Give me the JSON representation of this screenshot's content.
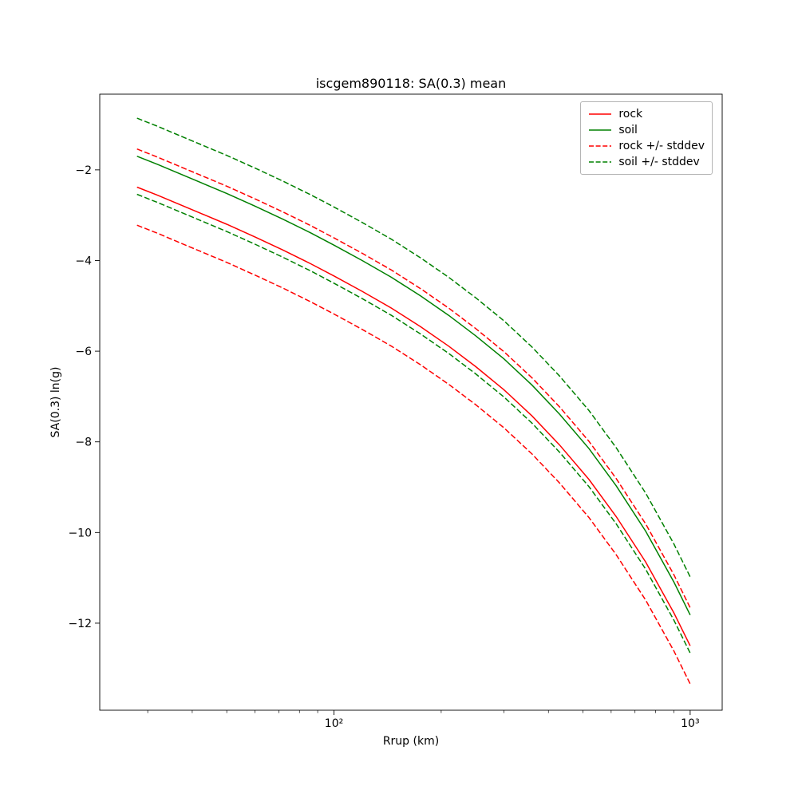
{
  "title": "iscgem890118: SA(0.3) mean",
  "axes": {
    "xlabel": "Rrup (km)",
    "ylabel": "SA(0.3) ln(g)",
    "x_scale": "log",
    "x_range": [
      22,
      1230
    ],
    "y_range": [
      -13.92,
      -0.33
    ],
    "x_ticks": [
      {
        "value": 100,
        "label": "10²"
      },
      {
        "value": 1000,
        "label": "10³"
      }
    ],
    "y_ticks": [
      {
        "value": -2,
        "label": "−2"
      },
      {
        "value": -4,
        "label": "−4"
      },
      {
        "value": -6,
        "label": "−6"
      },
      {
        "value": -8,
        "label": "−8"
      },
      {
        "value": -10,
        "label": "−10"
      },
      {
        "value": -12,
        "label": "−12"
      }
    ]
  },
  "legend": {
    "position": "upper right",
    "items": [
      {
        "label": "rock",
        "color": "#ff0000",
        "style": "solid"
      },
      {
        "label": "soil",
        "color": "#008000",
        "style": "solid"
      },
      {
        "label": "rock +/- stddev",
        "color": "#ff0000",
        "style": "dashed"
      },
      {
        "label": "soil +/- stddev",
        "color": "#008000",
        "style": "dashed"
      }
    ]
  },
  "chart_data": {
    "type": "line",
    "title": "iscgem890118: SA(0.3) mean",
    "xlabel": "Rrup (km)",
    "ylabel": "SA(0.3) ln(g)",
    "x_scale": "log",
    "grid": false,
    "legend_position": "upper right",
    "x": [
      28,
      32,
      36,
      42,
      50,
      60,
      72,
      86,
      100,
      120,
      145,
      175,
      210,
      250,
      300,
      360,
      430,
      520,
      620,
      750,
      900,
      1000
    ],
    "series": [
      {
        "name": "rock",
        "color": "#ff0000",
        "style": "solid",
        "values": [
          -2.38,
          -2.56,
          -2.73,
          -2.95,
          -3.2,
          -3.48,
          -3.77,
          -4.07,
          -4.34,
          -4.68,
          -5.05,
          -5.46,
          -5.89,
          -6.34,
          -6.85,
          -7.43,
          -8.07,
          -8.83,
          -9.65,
          -10.65,
          -11.77,
          -12.5
        ]
      },
      {
        "name": "soil",
        "color": "#008000",
        "style": "solid",
        "values": [
          -1.7,
          -1.88,
          -2.05,
          -2.27,
          -2.52,
          -2.8,
          -3.09,
          -3.39,
          -3.66,
          -4.0,
          -4.37,
          -4.78,
          -5.21,
          -5.66,
          -6.17,
          -6.75,
          -7.39,
          -8.15,
          -8.97,
          -9.97,
          -11.09,
          -11.82
        ]
      },
      {
        "name": "rock + stddev",
        "color": "#ff0000",
        "style": "dashed",
        "values": [
          -1.54,
          -1.72,
          -1.89,
          -2.11,
          -2.36,
          -2.64,
          -2.93,
          -3.23,
          -3.5,
          -3.84,
          -4.21,
          -4.62,
          -5.05,
          -5.5,
          -6.01,
          -6.59,
          -7.23,
          -7.99,
          -8.81,
          -9.81,
          -10.93,
          -11.66
        ]
      },
      {
        "name": "rock - stddev",
        "color": "#ff0000",
        "style": "dashed",
        "values": [
          -3.22,
          -3.4,
          -3.57,
          -3.79,
          -4.04,
          -4.32,
          -4.61,
          -4.91,
          -5.18,
          -5.52,
          -5.89,
          -6.3,
          -6.73,
          -7.18,
          -7.69,
          -8.27,
          -8.91,
          -9.67,
          -10.49,
          -11.49,
          -12.61,
          -13.34
        ]
      },
      {
        "name": "soil + stddev",
        "color": "#008000",
        "style": "dashed",
        "values": [
          -0.86,
          -1.04,
          -1.21,
          -1.43,
          -1.68,
          -1.96,
          -2.25,
          -2.55,
          -2.82,
          -3.16,
          -3.53,
          -3.94,
          -4.37,
          -4.82,
          -5.33,
          -5.91,
          -6.55,
          -7.31,
          -8.13,
          -9.13,
          -10.25,
          -10.98
        ]
      },
      {
        "name": "soil - stddev",
        "color": "#008000",
        "style": "dashed",
        "values": [
          -2.54,
          -2.72,
          -2.89,
          -3.11,
          -3.36,
          -3.64,
          -3.93,
          -4.23,
          -4.5,
          -4.84,
          -5.21,
          -5.62,
          -6.05,
          -6.5,
          -7.01,
          -7.59,
          -8.23,
          -8.99,
          -9.81,
          -10.81,
          -11.93,
          -12.66
        ]
      }
    ]
  }
}
